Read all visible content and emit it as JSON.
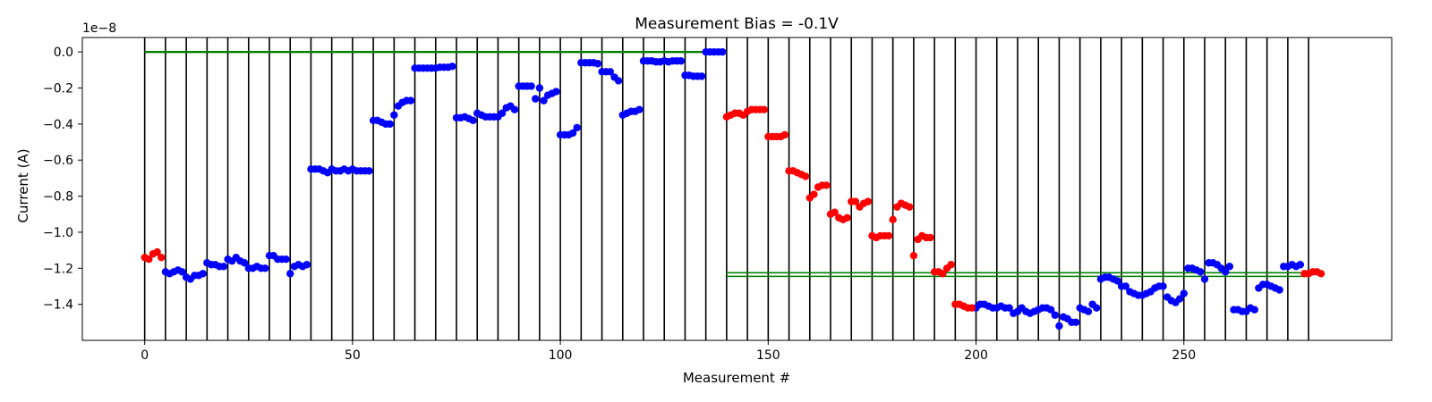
{
  "chart_data": {
    "type": "scatter",
    "title": "Measurement Bias = -0.1V",
    "xlabel": "Measurement #",
    "ylabel": "Current (A)",
    "y_offset_label": "1e−8",
    "xlim": [
      -15,
      300
    ],
    "ylim": [
      -1.6,
      0.08
    ],
    "y_scale_exponent": -8,
    "xticks": [
      0,
      50,
      100,
      150,
      200,
      250
    ],
    "xtick_labels": [
      "0",
      "50",
      "100",
      "150",
      "200",
      "250"
    ],
    "yticks": [
      0.0,
      -0.2,
      -0.4,
      -0.6,
      -0.8,
      -1.0,
      -1.2,
      -1.4
    ],
    "ytick_labels": [
      "0.0",
      "−0.2",
      "−0.4",
      "−0.6",
      "−0.8",
      "−1.0",
      "−1.2",
      "−1.4"
    ],
    "grid": false,
    "vertical_separators_x": [
      0,
      5,
      10,
      15,
      20,
      25,
      30,
      35,
      40,
      45,
      50,
      55,
      60,
      65,
      70,
      75,
      80,
      85,
      90,
      95,
      100,
      105,
      110,
      115,
      120,
      125,
      130,
      135,
      140,
      145,
      150,
      155,
      160,
      165,
      170,
      175,
      180,
      185,
      190,
      195,
      200,
      205,
      210,
      215,
      220,
      225,
      230,
      235,
      240,
      245,
      250,
      255,
      260,
      265,
      270,
      275,
      280
    ],
    "reference_lines": [
      {
        "x": [
          0,
          140
        ],
        "y": -0.002,
        "color": "#008000"
      },
      {
        "x": [
          0,
          140
        ],
        "y": 0.002,
        "color": "#008000"
      },
      {
        "x": [
          140,
          280
        ],
        "y": -1.225,
        "color": "#008000"
      },
      {
        "x": [
          140,
          280
        ],
        "y": -1.245,
        "color": "#008000"
      }
    ],
    "colors": {
      "blue": "#0000ff",
      "red": "#ff0000",
      "green": "#008000",
      "separator": "#000000"
    },
    "series": [
      {
        "color": "blue",
        "points": [
          [
            5,
            -1.22
          ],
          [
            6,
            -1.23
          ],
          [
            7,
            -1.22
          ],
          [
            8,
            -1.21
          ],
          [
            9,
            -1.22
          ],
          [
            10,
            -1.25
          ],
          [
            11,
            -1.26
          ],
          [
            12,
            -1.24
          ],
          [
            13,
            -1.24
          ],
          [
            14,
            -1.23
          ],
          [
            15,
            -1.17
          ],
          [
            16,
            -1.18
          ],
          [
            17,
            -1.18
          ],
          [
            18,
            -1.19
          ],
          [
            19,
            -1.19
          ],
          [
            20,
            -1.15
          ],
          [
            21,
            -1.16
          ],
          [
            22,
            -1.14
          ],
          [
            23,
            -1.16
          ],
          [
            24,
            -1.17
          ],
          [
            25,
            -1.2
          ],
          [
            26,
            -1.2
          ],
          [
            27,
            -1.19
          ],
          [
            28,
            -1.2
          ],
          [
            29,
            -1.2
          ],
          [
            30,
            -1.13
          ],
          [
            31,
            -1.13
          ],
          [
            32,
            -1.15
          ],
          [
            33,
            -1.15
          ],
          [
            34,
            -1.15
          ],
          [
            35,
            -1.23
          ],
          [
            36,
            -1.19
          ],
          [
            37,
            -1.18
          ],
          [
            38,
            -1.19
          ],
          [
            39,
            -1.18
          ],
          [
            40,
            -0.65
          ],
          [
            41,
            -0.65
          ],
          [
            42,
            -0.65
          ],
          [
            43,
            -0.66
          ],
          [
            44,
            -0.67
          ],
          [
            45,
            -0.65
          ],
          [
            46,
            -0.66
          ],
          [
            47,
            -0.66
          ],
          [
            48,
            -0.65
          ],
          [
            49,
            -0.66
          ],
          [
            50,
            -0.65
          ],
          [
            51,
            -0.66
          ],
          [
            52,
            -0.66
          ],
          [
            53,
            -0.66
          ],
          [
            54,
            -0.66
          ],
          [
            55,
            -0.38
          ],
          [
            56,
            -0.38
          ],
          [
            57,
            -0.39
          ],
          [
            58,
            -0.4
          ],
          [
            59,
            -0.4
          ],
          [
            60,
            -0.35
          ],
          [
            61,
            -0.3
          ],
          [
            62,
            -0.28
          ],
          [
            63,
            -0.27
          ],
          [
            64,
            -0.27
          ],
          [
            65,
            -0.09
          ],
          [
            66,
            -0.09
          ],
          [
            67,
            -0.09
          ],
          [
            68,
            -0.09
          ],
          [
            69,
            -0.09
          ],
          [
            70,
            -0.09
          ],
          [
            71,
            -0.085
          ],
          [
            72,
            -0.085
          ],
          [
            73,
            -0.085
          ],
          [
            74,
            -0.08
          ],
          [
            75,
            -0.365
          ],
          [
            76,
            -0.365
          ],
          [
            77,
            -0.36
          ],
          [
            78,
            -0.37
          ],
          [
            79,
            -0.38
          ],
          [
            80,
            -0.34
          ],
          [
            81,
            -0.35
          ],
          [
            82,
            -0.36
          ],
          [
            83,
            -0.36
          ],
          [
            84,
            -0.36
          ],
          [
            85,
            -0.36
          ],
          [
            86,
            -0.34
          ],
          [
            87,
            -0.31
          ],
          [
            88,
            -0.3
          ],
          [
            89,
            -0.32
          ],
          [
            90,
            -0.19
          ],
          [
            91,
            -0.19
          ],
          [
            92,
            -0.19
          ],
          [
            93,
            -0.19
          ],
          [
            94,
            -0.26
          ],
          [
            95,
            -0.2
          ],
          [
            96,
            -0.27
          ],
          [
            97,
            -0.24
          ],
          [
            98,
            -0.23
          ],
          [
            99,
            -0.22
          ],
          [
            100,
            -0.46
          ],
          [
            101,
            -0.46
          ],
          [
            102,
            -0.46
          ],
          [
            103,
            -0.45
          ],
          [
            104,
            -0.42
          ],
          [
            105,
            -0.06
          ],
          [
            106,
            -0.06
          ],
          [
            107,
            -0.06
          ],
          [
            108,
            -0.06
          ],
          [
            109,
            -0.065
          ],
          [
            110,
            -0.11
          ],
          [
            111,
            -0.11
          ],
          [
            112,
            -0.11
          ],
          [
            113,
            -0.14
          ],
          [
            114,
            -0.16
          ],
          [
            115,
            -0.35
          ],
          [
            116,
            -0.34
          ],
          [
            117,
            -0.33
          ],
          [
            118,
            -0.33
          ],
          [
            119,
            -0.32
          ],
          [
            120,
            -0.05
          ],
          [
            121,
            -0.05
          ],
          [
            122,
            -0.05
          ],
          [
            123,
            -0.055
          ],
          [
            124,
            -0.055
          ],
          [
            125,
            -0.05
          ],
          [
            126,
            -0.055
          ],
          [
            127,
            -0.05
          ],
          [
            128,
            -0.05
          ],
          [
            129,
            -0.05
          ],
          [
            130,
            -0.13
          ],
          [
            131,
            -0.13
          ],
          [
            132,
            -0.135
          ],
          [
            133,
            -0.135
          ],
          [
            134,
            -0.135
          ],
          [
            135,
            0.0
          ],
          [
            136,
            0.0
          ],
          [
            137,
            0.0
          ],
          [
            138,
            0.0
          ],
          [
            139,
            0.0
          ],
          [
            200,
            -1.42
          ],
          [
            201,
            -1.4
          ],
          [
            202,
            -1.4
          ],
          [
            203,
            -1.41
          ],
          [
            204,
            -1.42
          ],
          [
            205,
            -1.42
          ],
          [
            206,
            -1.41
          ],
          [
            207,
            -1.42
          ],
          [
            208,
            -1.42
          ],
          [
            209,
            -1.45
          ],
          [
            210,
            -1.44
          ],
          [
            211,
            -1.42
          ],
          [
            212,
            -1.44
          ],
          [
            213,
            -1.45
          ],
          [
            214,
            -1.44
          ],
          [
            215,
            -1.43
          ],
          [
            216,
            -1.42
          ],
          [
            217,
            -1.42
          ],
          [
            218,
            -1.43
          ],
          [
            219,
            -1.46
          ],
          [
            220,
            -1.52
          ],
          [
            221,
            -1.47
          ],
          [
            222,
            -1.48
          ],
          [
            223,
            -1.5
          ],
          [
            224,
            -1.5
          ],
          [
            225,
            -1.42
          ],
          [
            226,
            -1.43
          ],
          [
            227,
            -1.44
          ],
          [
            228,
            -1.4
          ],
          [
            229,
            -1.42
          ],
          [
            230,
            -1.26
          ],
          [
            231,
            -1.25
          ],
          [
            232,
            -1.25
          ],
          [
            233,
            -1.26
          ],
          [
            234,
            -1.27
          ],
          [
            235,
            -1.3
          ],
          [
            236,
            -1.3
          ],
          [
            237,
            -1.33
          ],
          [
            238,
            -1.34
          ],
          [
            239,
            -1.35
          ],
          [
            240,
            -1.35
          ],
          [
            241,
            -1.34
          ],
          [
            242,
            -1.33
          ],
          [
            243,
            -1.31
          ],
          [
            244,
            -1.3
          ],
          [
            245,
            -1.3
          ],
          [
            246,
            -1.36
          ],
          [
            247,
            -1.38
          ],
          [
            248,
            -1.39
          ],
          [
            249,
            -1.37
          ],
          [
            250,
            -1.34
          ],
          [
            251,
            -1.2
          ],
          [
            252,
            -1.2
          ],
          [
            253,
            -1.21
          ],
          [
            254,
            -1.22
          ],
          [
            255,
            -1.26
          ],
          [
            256,
            -1.17
          ],
          [
            257,
            -1.17
          ],
          [
            258,
            -1.18
          ],
          [
            259,
            -1.2
          ],
          [
            260,
            -1.22
          ],
          [
            261,
            -1.19
          ],
          [
            262,
            -1.43
          ],
          [
            263,
            -1.43
          ],
          [
            264,
            -1.44
          ],
          [
            265,
            -1.44
          ],
          [
            266,
            -1.42
          ],
          [
            267,
            -1.43
          ],
          [
            268,
            -1.31
          ],
          [
            269,
            -1.29
          ],
          [
            270,
            -1.29
          ],
          [
            271,
            -1.3
          ],
          [
            272,
            -1.31
          ],
          [
            273,
            -1.32
          ],
          [
            274,
            -1.19
          ],
          [
            275,
            -1.19
          ],
          [
            276,
            -1.18
          ],
          [
            277,
            -1.19
          ],
          [
            278,
            -1.18
          ]
        ]
      },
      {
        "color": "red",
        "points": [
          [
            0,
            -1.14
          ],
          [
            1,
            -1.15
          ],
          [
            2,
            -1.12
          ],
          [
            3,
            -1.11
          ],
          [
            4,
            -1.14
          ],
          [
            140,
            -0.36
          ],
          [
            141,
            -0.35
          ],
          [
            142,
            -0.34
          ],
          [
            143,
            -0.34
          ],
          [
            144,
            -0.35
          ],
          [
            145,
            -0.33
          ],
          [
            146,
            -0.32
          ],
          [
            147,
            -0.32
          ],
          [
            148,
            -0.32
          ],
          [
            149,
            -0.32
          ],
          [
            150,
            -0.47
          ],
          [
            151,
            -0.47
          ],
          [
            152,
            -0.47
          ],
          [
            153,
            -0.47
          ],
          [
            154,
            -0.46
          ],
          [
            155,
            -0.66
          ],
          [
            156,
            -0.66
          ],
          [
            157,
            -0.67
          ],
          [
            158,
            -0.68
          ],
          [
            159,
            -0.69
          ],
          [
            160,
            -0.81
          ],
          [
            161,
            -0.79
          ],
          [
            162,
            -0.75
          ],
          [
            163,
            -0.74
          ],
          [
            164,
            -0.74
          ],
          [
            165,
            -0.9
          ],
          [
            166,
            -0.89
          ],
          [
            167,
            -0.92
          ],
          [
            168,
            -0.93
          ],
          [
            169,
            -0.92
          ],
          [
            170,
            -0.83
          ],
          [
            171,
            -0.83
          ],
          [
            172,
            -0.86
          ],
          [
            173,
            -0.84
          ],
          [
            174,
            -0.83
          ],
          [
            175,
            -1.02
          ],
          [
            176,
            -1.03
          ],
          [
            177,
            -1.02
          ],
          [
            178,
            -1.02
          ],
          [
            179,
            -1.02
          ],
          [
            180,
            -0.93
          ],
          [
            181,
            -0.86
          ],
          [
            182,
            -0.84
          ],
          [
            183,
            -0.85
          ],
          [
            184,
            -0.86
          ],
          [
            185,
            -1.13
          ],
          [
            186,
            -1.04
          ],
          [
            187,
            -1.02
          ],
          [
            188,
            -1.03
          ],
          [
            189,
            -1.03
          ],
          [
            190,
            -1.22
          ],
          [
            191,
            -1.22
          ],
          [
            192,
            -1.23
          ],
          [
            193,
            -1.2
          ],
          [
            194,
            -1.18
          ],
          [
            195,
            -1.4
          ],
          [
            196,
            -1.4
          ],
          [
            197,
            -1.41
          ],
          [
            198,
            -1.42
          ],
          [
            199,
            -1.42
          ],
          [
            279,
            -1.23
          ],
          [
            280,
            -1.23
          ],
          [
            281,
            -1.22
          ],
          [
            282,
            -1.22
          ],
          [
            283,
            -1.23
          ]
        ]
      }
    ]
  }
}
